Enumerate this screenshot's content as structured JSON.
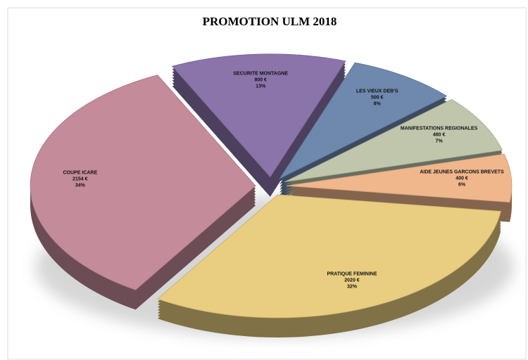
{
  "chart_data": {
    "type": "pie",
    "title": "PROMOTION ULM 2018",
    "categories": [
      "SECURITE MONTAGNE",
      "LES VIEUX DEB'S",
      "MANIFESTATIONS REGIONALES",
      "AIDE JEUNES GARCONS BREVETS",
      "PRATIQUE FEMININE",
      "COUPE ICARE"
    ],
    "values": [
      800,
      500,
      480,
      400,
      2020,
      2154
    ],
    "value_labels": [
      "800 €",
      "500 €",
      "480 €",
      "400 €",
      "2020 €",
      "2154 €"
    ],
    "percent_labels": [
      "13%",
      "8%",
      "7%",
      "6%",
      "32%",
      "34%"
    ],
    "colors": [
      "#8a74aa",
      "#6e88ae",
      "#bfc6ab",
      "#f0b68c",
      "#e9cd80",
      "#c48b9a"
    ]
  }
}
